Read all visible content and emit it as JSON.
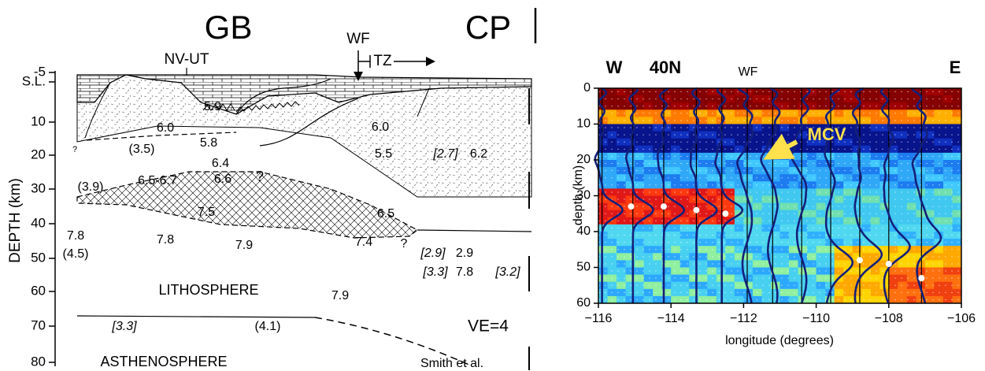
{
  "left_panel": {
    "regions": [
      "GB",
      "CP"
    ],
    "wf": "WF",
    "tz": "TZ",
    "nv_ut": "NV-UT",
    "y_axis_label": "DEPTH (km)",
    "y_ticks": [
      "-5",
      "S.L.",
      "10",
      "20",
      "30",
      "40",
      "50",
      "60",
      "70",
      "80"
    ],
    "labels": [
      "(3.5)",
      "6.0",
      "5.9",
      "5.8",
      "6.4",
      "6.6",
      "?",
      "?",
      "6.0",
      "5.5",
      "[2.7]",
      "6.2",
      "6.5-6.7",
      "(3.9)",
      "7.5",
      "6.5",
      "?",
      "7.8",
      "7.8",
      "7.9",
      "7.4",
      "[2.9]",
      "2.9",
      "(4.5)",
      "[3.3]",
      "7.8",
      "[3.2]",
      "7.9",
      "[3.3]",
      "(4.1)"
    ],
    "lithosphere": "LITHOSPHERE",
    "asthenosphere": "ASTHENOSPHERE",
    "ve": "VE=4",
    "credit": "Smith et al."
  },
  "right_panel": {
    "corner_labels": [
      "W",
      "40N",
      "WF",
      "E"
    ],
    "annotation": "MCV",
    "y_axis_label": "depth (km)",
    "x_axis_label": "longitude (degrees)",
    "y_ticks": [
      "0",
      "10",
      "20",
      "30",
      "40",
      "50",
      "60"
    ],
    "x_ticks": [
      "−116",
      "−114",
      "−112",
      "−110",
      "−108",
      "−106"
    ]
  }
}
